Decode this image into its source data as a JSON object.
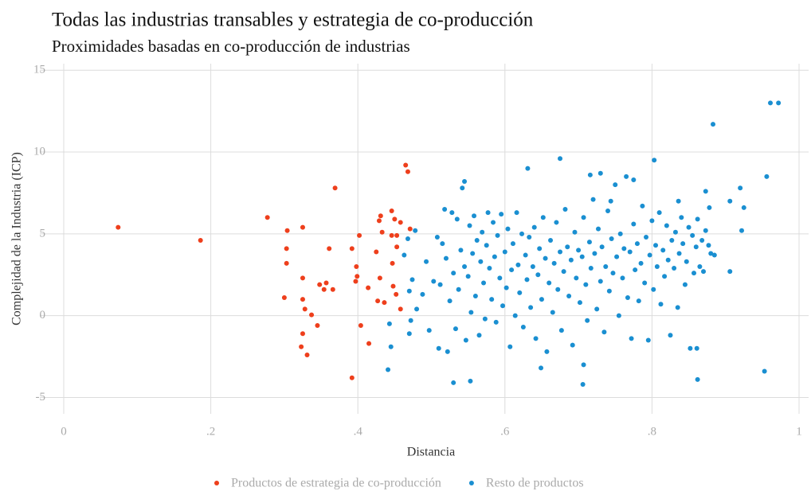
{
  "chart_data": {
    "type": "scatter",
    "title": "Todas las industrias transables y estrategia de co-producción",
    "subtitle": "Proximidades basadas en co-producción de industrias",
    "x_label": "Distancia",
    "y_label": "Complejidad de la Industria (ICP)",
    "xlim": [
      -0.0325,
      1.013
    ],
    "ylim": [
      -6.0,
      15.4
    ],
    "xticks": [
      0,
      {
        "value": 0.2,
        "label": ".2"
      },
      {
        "value": 0.4,
        "label": ".4"
      },
      {
        "value": 0.6,
        "label": ".6"
      },
      {
        "value": 0.8,
        "label": ".8"
      },
      1
    ],
    "yticks": [
      -5,
      0,
      5,
      10,
      15
    ],
    "grid": true,
    "legend": "bottom",
    "series": [
      {
        "name": "Productos de estrategia de co-producción",
        "color": "#ee3f1c",
        "x": [
          0.074,
          0.186,
          0.277,
          0.304,
          0.303,
          0.303,
          0.3,
          0.337,
          0.325,
          0.369,
          0.325,
          0.325,
          0.328,
          0.325,
          0.323,
          0.331,
          0.345,
          0.348,
          0.357,
          0.361,
          0.354,
          0.366,
          0.392,
          0.398,
          0.399,
          0.402,
          0.404,
          0.414,
          0.415,
          0.397,
          0.425,
          0.427,
          0.43,
          0.429,
          0.431,
          0.436,
          0.446,
          0.45,
          0.446,
          0.453,
          0.447,
          0.448,
          0.453,
          0.458,
          0.458,
          0.433,
          0.465,
          0.468,
          0.471,
          0.452,
          0.392
        ],
        "y": [
          5.4,
          4.6,
          6.0,
          5.2,
          4.1,
          3.2,
          1.1,
          0.05,
          5.4,
          7.8,
          2.3,
          1.0,
          0.4,
          -1.1,
          -1.9,
          -2.4,
          -0.6,
          1.9,
          2.0,
          4.1,
          1.6,
          1.6,
          -3.8,
          3.0,
          2.4,
          4.9,
          -0.6,
          1.7,
          -1.7,
          2.1,
          3.9,
          0.9,
          2.3,
          5.8,
          6.1,
          0.8,
          6.4,
          5.9,
          4.9,
          4.9,
          3.2,
          1.8,
          4.2,
          5.7,
          0.4,
          5.1,
          9.2,
          8.8,
          5.3,
          1.3,
          4.1
        ]
      },
      {
        "name": "Resto de productos",
        "color": "#1a8fd1",
        "x": [
          0.961,
          0.972,
          0.883,
          0.956,
          0.953,
          0.862,
          0.861,
          0.675,
          0.803,
          0.631,
          0.545,
          0.706,
          0.53,
          0.553,
          0.441,
          0.649,
          0.707,
          0.925,
          0.92,
          0.906,
          0.873,
          0.836,
          0.922,
          0.906,
          0.885,
          0.468,
          0.463,
          0.47,
          0.474,
          0.472,
          0.47,
          0.443,
          0.445,
          0.478,
          0.48,
          0.488,
          0.493,
          0.497,
          0.503,
          0.508,
          0.51,
          0.512,
          0.515,
          0.518,
          0.52,
          0.522,
          0.525,
          0.528,
          0.53,
          0.533,
          0.535,
          0.537,
          0.54,
          0.542,
          0.545,
          0.547,
          0.55,
          0.552,
          0.554,
          0.556,
          0.558,
          0.56,
          0.562,
          0.565,
          0.567,
          0.569,
          0.571,
          0.573,
          0.575,
          0.577,
          0.579,
          0.582,
          0.584,
          0.586,
          0.588,
          0.59,
          0.593,
          0.595,
          0.597,
          0.6,
          0.602,
          0.604,
          0.607,
          0.609,
          0.611,
          0.614,
          0.616,
          0.618,
          0.62,
          0.623,
          0.625,
          0.628,
          0.63,
          0.633,
          0.635,
          0.638,
          0.64,
          0.642,
          0.645,
          0.647,
          0.65,
          0.652,
          0.655,
          0.657,
          0.66,
          0.662,
          0.665,
          0.667,
          0.67,
          0.672,
          0.675,
          0.677,
          0.68,
          0.682,
          0.685,
          0.687,
          0.69,
          0.692,
          0.695,
          0.697,
          0.7,
          0.702,
          0.705,
          0.707,
          0.71,
          0.712,
          0.715,
          0.717,
          0.72,
          0.722,
          0.725,
          0.727,
          0.73,
          0.732,
          0.735,
          0.737,
          0.74,
          0.742,
          0.745,
          0.747,
          0.75,
          0.752,
          0.755,
          0.757,
          0.76,
          0.762,
          0.765,
          0.767,
          0.77,
          0.772,
          0.775,
          0.777,
          0.78,
          0.782,
          0.785,
          0.787,
          0.79,
          0.792,
          0.795,
          0.797,
          0.8,
          0.802,
          0.805,
          0.807,
          0.81,
          0.812,
          0.815,
          0.817,
          0.82,
          0.822,
          0.825,
          0.827,
          0.83,
          0.832,
          0.835,
          0.837,
          0.84,
          0.842,
          0.845,
          0.847,
          0.85,
          0.852,
          0.855,
          0.857,
          0.86,
          0.862,
          0.865,
          0.868,
          0.87,
          0.873,
          0.877,
          0.88,
          0.878,
          0.716,
          0.73,
          0.775,
          0.744
        ],
        "y": [
          13.0,
          13.0,
          11.7,
          8.5,
          -3.4,
          -3.9,
          -2.0,
          9.6,
          9.5,
          9.0,
          8.2,
          -4.2,
          -4.1,
          -4.0,
          -3.3,
          -3.2,
          -3.0,
          6.6,
          7.8,
          7.0,
          7.6,
          7.0,
          5.2,
          2.7,
          3.7,
          4.7,
          3.7,
          1.5,
          2.2,
          -0.3,
          -1.1,
          -0.5,
          -1.9,
          5.2,
          0.4,
          1.3,
          3.3,
          -0.9,
          2.1,
          4.8,
          -2.0,
          1.9,
          4.4,
          6.5,
          3.5,
          -2.2,
          0.9,
          6.3,
          2.6,
          -0.8,
          5.9,
          1.6,
          4.0,
          7.8,
          3.0,
          -1.5,
          2.4,
          5.5,
          0.2,
          3.8,
          6.1,
          1.2,
          4.6,
          -1.2,
          3.3,
          5.1,
          2.0,
          -0.2,
          4.3,
          6.3,
          2.9,
          1.0,
          5.7,
          3.6,
          -0.4,
          4.9,
          2.3,
          6.2,
          0.6,
          3.9,
          1.7,
          5.3,
          -1.9,
          2.8,
          4.4,
          0.0,
          6.3,
          3.1,
          1.4,
          5.0,
          -0.7,
          3.7,
          2.2,
          4.8,
          0.5,
          3.0,
          5.4,
          -1.4,
          2.5,
          4.1,
          1.0,
          6.0,
          3.5,
          -2.2,
          2.0,
          4.6,
          0.2,
          3.2,
          5.7,
          1.6,
          3.9,
          -0.9,
          2.7,
          6.5,
          4.2,
          1.2,
          3.4,
          -1.8,
          5.1,
          2.3,
          4.0,
          0.8,
          3.6,
          6.0,
          1.9,
          -0.3,
          4.5,
          2.9,
          7.1,
          3.8,
          0.4,
          5.3,
          2.1,
          4.2,
          -1.0,
          3.0,
          6.4,
          1.5,
          4.7,
          2.6,
          8.0,
          3.6,
          0.0,
          5.0,
          2.3,
          4.1,
          8.5,
          1.1,
          3.9,
          -1.4,
          5.6,
          2.8,
          4.4,
          0.9,
          3.2,
          6.7,
          2.0,
          4.8,
          -1.5,
          3.7,
          5.8,
          1.6,
          4.3,
          3.0,
          6.3,
          0.7,
          4.0,
          2.4,
          5.5,
          3.4,
          -1.2,
          4.6,
          2.9,
          5.1,
          0.5,
          3.8,
          6.0,
          4.4,
          1.9,
          3.3,
          5.4,
          -2.0,
          4.9,
          2.6,
          4.2,
          5.9,
          3.0,
          4.6,
          2.7,
          5.2,
          4.3,
          3.8,
          6.6,
          8.6,
          8.7,
          8.3,
          7.0
        ]
      }
    ]
  }
}
